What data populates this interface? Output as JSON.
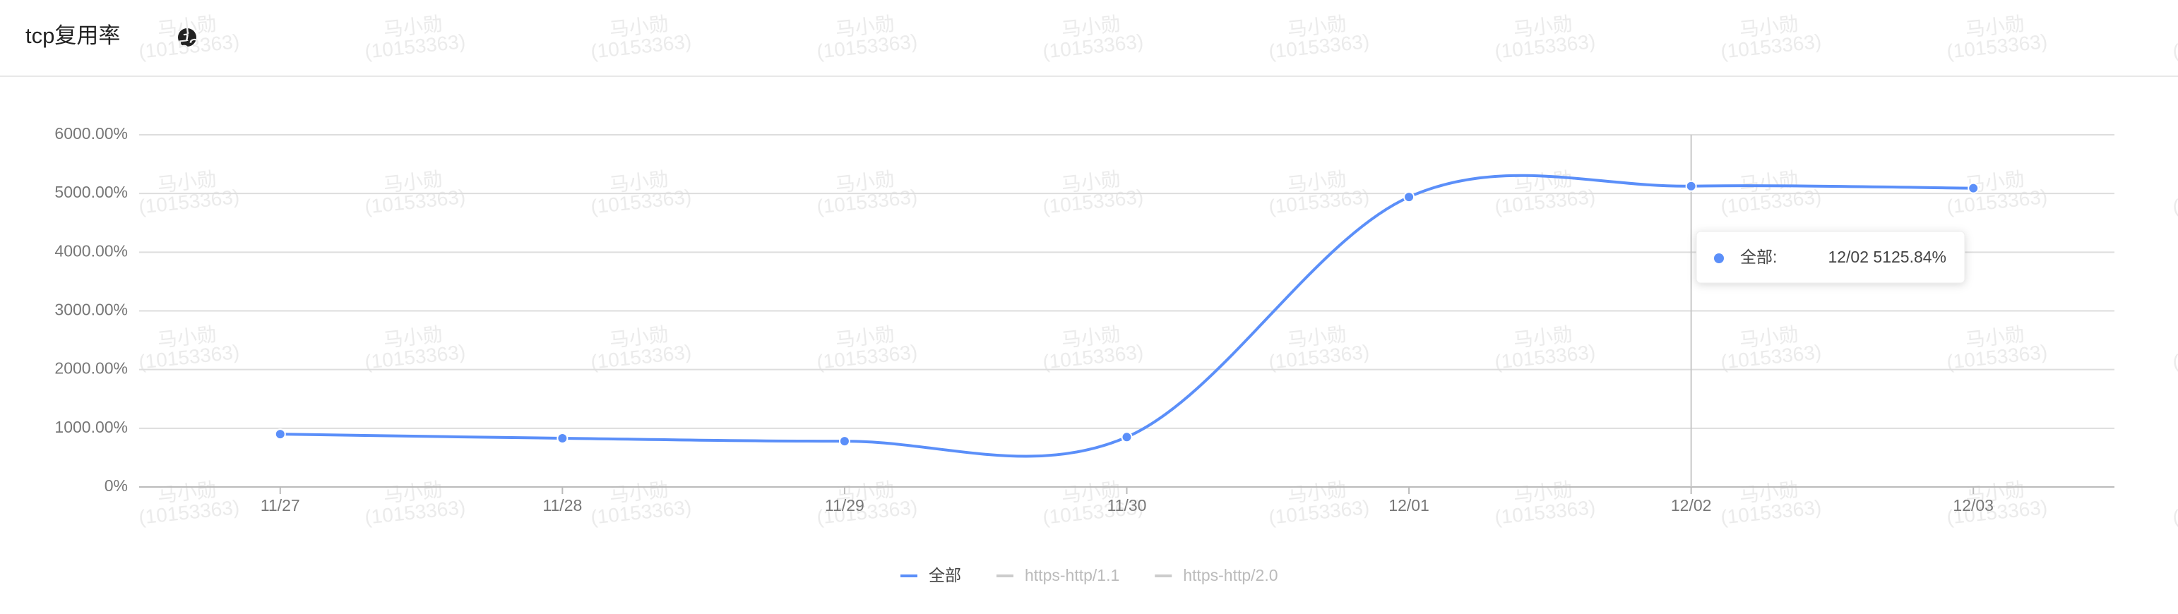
{
  "header": {
    "title": "tcp复用率"
  },
  "watermark": [
    "马小勋",
    "(10153363)"
  ],
  "chart_data": {
    "type": "line",
    "categories": [
      "11/27",
      "11/28",
      "11/29",
      "11/30",
      "12/01",
      "12/02",
      "12/03"
    ],
    "series": [
      {
        "name": "全部",
        "color": "#5b8ff9",
        "values": [
          900,
          830,
          780,
          850,
          4940,
          5125.84,
          5090
        ]
      },
      {
        "name": "https-http/1.1",
        "color": "#cccccc",
        "values": [
          null,
          null,
          null,
          null,
          null,
          null,
          null
        ]
      },
      {
        "name": "https-http/2.0",
        "color": "#cccccc",
        "values": [
          null,
          null,
          null,
          null,
          null,
          null,
          null
        ]
      }
    ],
    "ylim": [
      0,
      6000
    ],
    "yticks": [
      {
        "value": 0,
        "label": "0%"
      },
      {
        "value": 1000,
        "label": "1000.00%"
      },
      {
        "value": 2000,
        "label": "2000.00%"
      },
      {
        "value": 3000,
        "label": "3000.00%"
      },
      {
        "value": 4000,
        "label": "4000.00%"
      },
      {
        "value": 5000,
        "label": "5000.00%"
      },
      {
        "value": 6000,
        "label": "6000.00%"
      }
    ],
    "grid": true,
    "smooth": true,
    "tooltip": {
      "name": "全部:",
      "text": "12/02 5125.84%"
    }
  }
}
